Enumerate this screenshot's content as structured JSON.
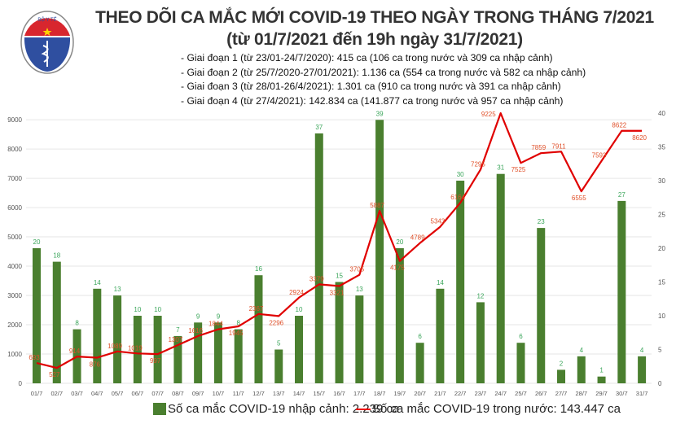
{
  "header": {
    "title": "THEO DÕI CA MẮC MỚI COVID-19 THEO NGÀY TRONG THÁNG 7/2021",
    "subtitle": "(từ 01/7/2021 đến 19h ngày 31/7/2021)",
    "notes": [
      "- Giai đoạn 1 (từ 23/01-24/7/2020): 415 ca (106 ca trong nước và 309 ca nhập cảnh)",
      "- Giai đoạn 2 (từ 25/7/2020-27/01/2021): 1.136 ca (554 ca trong nước và 582 ca nhập cảnh)",
      "- Giai đoạn 3 (từ 28/01-26/4/2021): 1.301 ca (910 ca trong nước và 391 ca nhập cảnh)",
      "- Giai đoạn 4 (từ 27/4/2021): 142.834 ca (141.877 ca trong nước và 957 ca nhập cảnh)"
    ],
    "logo": {
      "top_text": "BỘ Y TẾ",
      "bottom_text": "MINISTRY OF HEALTH"
    }
  },
  "chart_data": {
    "type": "bar+line",
    "categories": [
      "01/7",
      "02/7",
      "03/7",
      "04/7",
      "05/7",
      "06/7",
      "07/7",
      "08/7",
      "09/7",
      "10/7",
      "11/7",
      "12/7",
      "13/7",
      "14/7",
      "15/7",
      "16/7",
      "17/7",
      "18/7",
      "19/7",
      "20/7",
      "21/7",
      "22/7",
      "23/7",
      "24/7",
      "25/7",
      "26/7",
      "27/7",
      "28/7",
      "29/7",
      "30/7",
      "31/7"
    ],
    "series": [
      {
        "name": "Số ca mắc COVID-19 nhập cảnh: 2.239 ca",
        "type": "bar",
        "axis": "right",
        "color": "#4a7f2f",
        "label_color": "#3aa55a",
        "values": [
          20,
          18,
          8,
          14,
          13,
          10,
          10,
          7,
          9,
          9,
          8,
          16,
          5,
          10,
          37,
          15,
          13,
          39,
          20,
          6,
          14,
          30,
          12,
          31,
          6,
          23,
          2,
          4,
          1,
          27,
          4
        ]
      },
      {
        "name": "Số ca mắc COVID-19 trong nước: 143.447 ca",
        "type": "line",
        "axis": "left",
        "color": "#e00000",
        "label_color": "#e0502a",
        "values": [
          693,
          527,
          914,
          876,
          1089,
          1019,
          997,
          1307,
          1616,
          1844,
          1945,
          2367,
          2296,
          2924,
          3379,
          3321,
          3705,
          5887,
          4175,
          4789,
          5343,
          6164,
          7295,
          9225,
          7525,
          7859,
          7911,
          6555,
          7593,
          8622,
          8620
        ]
      }
    ],
    "left_axis": {
      "ticks": [
        0,
        1000,
        2000,
        3000,
        4000,
        5000,
        6000,
        7000,
        8000,
        9000
      ],
      "range": [
        0,
        9225
      ]
    },
    "right_axis": {
      "ticks": [
        0,
        5,
        10,
        15,
        20,
        25,
        30,
        35,
        40
      ],
      "range": [
        0,
        40
      ]
    },
    "grid": true,
    "legend": "bottom"
  }
}
